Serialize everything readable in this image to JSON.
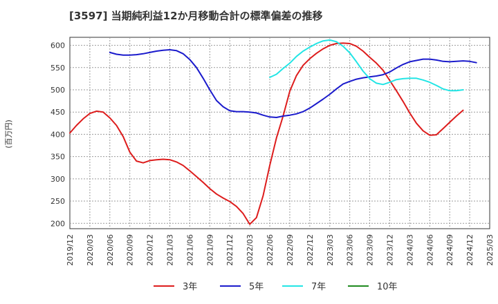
{
  "chart_data": {
    "type": "line",
    "title": "[3597]  当期純利益12か月移動合計の標準偏差の推移",
    "xlabel": "",
    "ylabel": "(百万円)",
    "ylim": [
      188,
      618
    ],
    "yticks": [
      200,
      250,
      300,
      350,
      400,
      450,
      500,
      550,
      600
    ],
    "xticks": [
      "2019/12",
      "2020/03",
      "2020/06",
      "2020/09",
      "2020/12",
      "2021/03",
      "2021/06",
      "2021/09",
      "2021/12",
      "2022/03",
      "2022/06",
      "2022/09",
      "2022/12",
      "2023/03",
      "2023/06",
      "2023/09",
      "2023/12",
      "2024/03",
      "2024/06",
      "2024/09",
      "2024/12",
      "2025/03"
    ],
    "grid": true,
    "legend_position": "bottom",
    "series": [
      {
        "name": "3年",
        "color": "#dd1c1c",
        "points": [
          [
            0,
            403
          ],
          [
            1,
            420
          ],
          [
            2,
            435
          ],
          [
            3,
            447
          ],
          [
            4,
            452
          ],
          [
            5,
            450
          ],
          [
            6,
            437
          ],
          [
            7,
            420
          ],
          [
            8,
            395
          ],
          [
            9,
            360
          ],
          [
            10,
            340
          ],
          [
            11,
            336
          ],
          [
            12,
            341
          ],
          [
            13,
            343
          ],
          [
            14,
            344
          ],
          [
            15,
            343
          ],
          [
            16,
            338
          ],
          [
            17,
            330
          ],
          [
            18,
            318
          ],
          [
            19,
            305
          ],
          [
            20,
            292
          ],
          [
            21,
            278
          ],
          [
            22,
            266
          ],
          [
            23,
            257
          ],
          [
            24,
            249
          ],
          [
            25,
            238
          ],
          [
            26,
            222
          ],
          [
            27,
            198
          ],
          [
            28,
            213
          ],
          [
            29,
            262
          ],
          [
            30,
            330
          ],
          [
            31,
            392
          ],
          [
            32,
            441
          ],
          [
            33,
            497
          ],
          [
            34,
            532
          ],
          [
            35,
            555
          ],
          [
            36,
            570
          ],
          [
            37,
            582
          ],
          [
            38,
            592
          ],
          [
            39,
            600
          ],
          [
            40,
            604
          ],
          [
            41,
            605
          ],
          [
            42,
            604
          ],
          [
            43,
            598
          ],
          [
            44,
            587
          ],
          [
            45,
            573
          ],
          [
            46,
            560
          ],
          [
            47,
            544
          ],
          [
            48,
            521
          ],
          [
            49,
            498
          ],
          [
            50,
            474
          ],
          [
            51,
            448
          ],
          [
            52,
            425
          ],
          [
            53,
            408
          ],
          [
            54,
            398
          ],
          [
            55,
            399
          ],
          [
            56,
            413
          ],
          [
            57,
            427
          ],
          [
            58,
            441
          ],
          [
            59,
            454
          ]
        ]
      },
      {
        "name": "5年",
        "color": "#1a1acc",
        "points": [
          [
            6,
            584
          ],
          [
            7,
            580
          ],
          [
            8,
            578
          ],
          [
            9,
            578
          ],
          [
            10,
            579
          ],
          [
            11,
            581
          ],
          [
            12,
            584
          ],
          [
            13,
            587
          ],
          [
            14,
            589
          ],
          [
            15,
            590
          ],
          [
            16,
            588
          ],
          [
            17,
            581
          ],
          [
            18,
            568
          ],
          [
            19,
            550
          ],
          [
            20,
            526
          ],
          [
            21,
            500
          ],
          [
            22,
            476
          ],
          [
            23,
            462
          ],
          [
            24,
            453
          ],
          [
            25,
            451
          ],
          [
            26,
            451
          ],
          [
            27,
            450
          ],
          [
            28,
            448
          ],
          [
            29,
            443
          ],
          [
            30,
            439
          ],
          [
            31,
            438
          ],
          [
            32,
            441
          ],
          [
            33,
            443
          ],
          [
            34,
            446
          ],
          [
            35,
            451
          ],
          [
            36,
            459
          ],
          [
            37,
            469
          ],
          [
            38,
            479
          ],
          [
            39,
            490
          ],
          [
            40,
            502
          ],
          [
            41,
            513
          ],
          [
            42,
            519
          ],
          [
            43,
            524
          ],
          [
            44,
            527
          ],
          [
            45,
            529
          ],
          [
            46,
            531
          ],
          [
            47,
            534
          ],
          [
            48,
            540
          ],
          [
            49,
            549
          ],
          [
            50,
            557
          ],
          [
            51,
            563
          ],
          [
            52,
            566
          ],
          [
            53,
            569
          ],
          [
            54,
            569
          ],
          [
            55,
            567
          ],
          [
            56,
            564
          ],
          [
            57,
            563
          ],
          [
            58,
            564
          ],
          [
            59,
            565
          ],
          [
            60,
            564
          ],
          [
            61,
            561
          ]
        ]
      },
      {
        "name": "7年",
        "color": "#22e5e5",
        "points": [
          [
            30,
            528
          ],
          [
            31,
            535
          ],
          [
            32,
            548
          ],
          [
            33,
            560
          ],
          [
            34,
            575
          ],
          [
            35,
            587
          ],
          [
            36,
            596
          ],
          [
            37,
            604
          ],
          [
            38,
            610
          ],
          [
            39,
            612
          ],
          [
            40,
            608
          ],
          [
            41,
            598
          ],
          [
            42,
            583
          ],
          [
            43,
            563
          ],
          [
            44,
            542
          ],
          [
            45,
            525
          ],
          [
            46,
            515
          ],
          [
            47,
            512
          ],
          [
            48,
            517
          ],
          [
            49,
            523
          ],
          [
            50,
            525
          ],
          [
            51,
            526
          ],
          [
            52,
            526
          ],
          [
            53,
            522
          ],
          [
            54,
            517
          ],
          [
            55,
            510
          ],
          [
            56,
            502
          ],
          [
            57,
            498
          ],
          [
            58,
            498
          ],
          [
            59,
            500
          ]
        ]
      },
      {
        "name": "10年",
        "color": "#1f8a1f",
        "points": []
      }
    ]
  }
}
